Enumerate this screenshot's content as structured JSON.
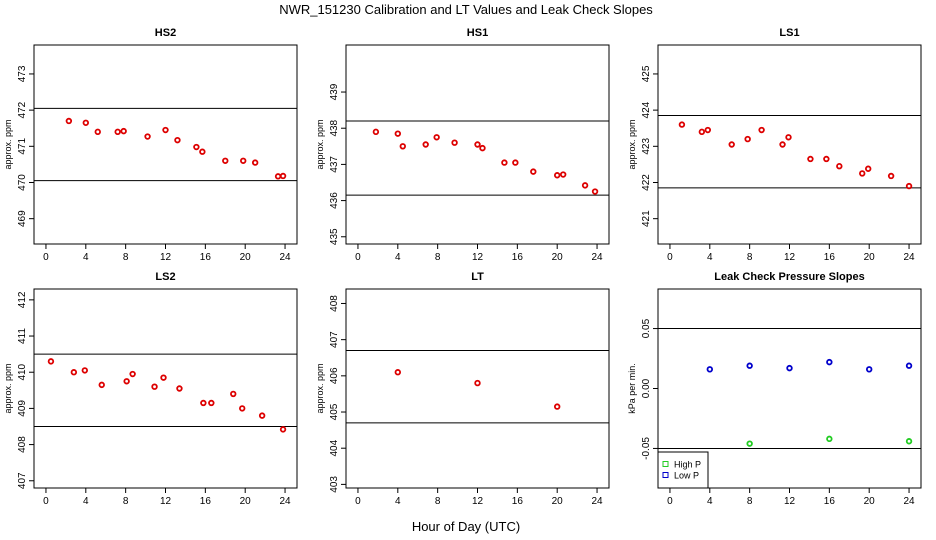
{
  "figure": {
    "title": "NWR_151230  Calibration and LT Values and Leak Check Slopes",
    "xlabel": "Hour of Day (UTC)"
  },
  "chart_data": [
    {
      "type": "scatter",
      "title": "HS2",
      "ylabel": "approx. ppm",
      "xlim": [
        -1.2,
        25.2
      ],
      "ylim": [
        468.3,
        473.8
      ],
      "xticks": [
        0,
        4,
        8,
        12,
        16,
        20,
        24
      ],
      "yticks": [
        469,
        470,
        471,
        472,
        473
      ],
      "hlines": [
        472.05,
        470.05
      ],
      "series": [
        {
          "color": "#dd0000",
          "shape": "circle",
          "x": [
            2.3,
            4.0,
            5.2,
            7.2,
            7.8,
            10.2,
            12.0,
            13.2,
            15.1,
            15.7,
            18.0,
            19.8,
            21.0,
            23.3,
            23.8
          ],
          "y": [
            471.7,
            471.65,
            471.4,
            471.4,
            471.42,
            471.27,
            471.45,
            471.17,
            470.98,
            470.85,
            470.6,
            470.6,
            470.55,
            470.17,
            470.18
          ]
        }
      ]
    },
    {
      "type": "scatter",
      "title": "HS1",
      "ylabel": "approx. ppm",
      "xlim": [
        -1.2,
        25.2
      ],
      "ylim": [
        434.8,
        440.3
      ],
      "xticks": [
        0,
        4,
        8,
        12,
        16,
        20,
        24
      ],
      "yticks": [
        435,
        436,
        437,
        438,
        439
      ],
      "hlines": [
        438.2,
        436.15
      ],
      "series": [
        {
          "color": "#dd0000",
          "shape": "circle",
          "x": [
            1.8,
            4.0,
            4.5,
            6.8,
            7.9,
            9.7,
            12.0,
            12.5,
            14.7,
            15.8,
            17.6,
            20.0,
            20.6,
            22.8,
            23.8
          ],
          "y": [
            437.9,
            437.85,
            437.5,
            437.55,
            437.75,
            437.6,
            437.55,
            437.45,
            437.05,
            437.05,
            436.8,
            436.7,
            436.72,
            436.42,
            436.25
          ]
        }
      ]
    },
    {
      "type": "scatter",
      "title": "LS1",
      "ylabel": "approx. ppm",
      "xlim": [
        -1.2,
        25.2
      ],
      "ylim": [
        420.3,
        425.8
      ],
      "xticks": [
        0,
        4,
        8,
        12,
        16,
        20,
        24
      ],
      "yticks": [
        421,
        422,
        423,
        424,
        425
      ],
      "hlines": [
        423.85,
        421.85
      ],
      "series": [
        {
          "color": "#dd0000",
          "shape": "circle",
          "x": [
            1.2,
            3.2,
            3.8,
            6.2,
            7.8,
            9.2,
            11.3,
            11.9,
            14.1,
            15.7,
            17.0,
            19.3,
            19.9,
            22.2,
            24.0
          ],
          "y": [
            423.6,
            423.4,
            423.45,
            423.05,
            423.2,
            423.45,
            423.05,
            423.25,
            422.65,
            422.65,
            422.45,
            422.25,
            422.38,
            422.18,
            421.9
          ]
        }
      ]
    },
    {
      "type": "scatter",
      "title": "LS2",
      "ylabel": "approx. ppm",
      "xlim": [
        -1.2,
        25.2
      ],
      "ylim": [
        406.8,
        412.3
      ],
      "xticks": [
        0,
        4,
        8,
        12,
        16,
        20,
        24
      ],
      "yticks": [
        407,
        408,
        409,
        410,
        411,
        412
      ],
      "hlines": [
        410.5,
        408.5
      ],
      "series": [
        {
          "color": "#dd0000",
          "shape": "circle",
          "x": [
            0.5,
            2.8,
            3.9,
            5.6,
            8.1,
            8.7,
            10.9,
            11.8,
            13.4,
            15.8,
            16.6,
            18.8,
            19.7,
            21.7,
            23.8
          ],
          "y": [
            410.3,
            410.0,
            410.05,
            409.65,
            409.75,
            409.95,
            409.6,
            409.85,
            409.55,
            409.15,
            409.15,
            409.4,
            409.0,
            408.8,
            408.42
          ]
        }
      ]
    },
    {
      "type": "scatter",
      "title": "LT",
      "ylabel": "approx. ppm",
      "xlim": [
        -1.2,
        25.2
      ],
      "ylim": [
        402.9,
        408.4
      ],
      "xticks": [
        0,
        4,
        8,
        12,
        16,
        20,
        24
      ],
      "yticks": [
        403,
        404,
        405,
        406,
        407,
        408
      ],
      "hlines": [
        406.7,
        404.7
      ],
      "series": [
        {
          "color": "#dd0000",
          "shape": "circle",
          "x": [
            4.0,
            12.0,
            20.0
          ],
          "y": [
            406.1,
            405.8,
            405.15
          ]
        }
      ]
    },
    {
      "type": "scatter",
      "title": "Leak Check Pressure Slopes",
      "ylabel": "kPa per min.",
      "xlim": [
        -1.2,
        25.2
      ],
      "ylim": [
        -0.083,
        0.083
      ],
      "xticks": [
        0,
        4,
        8,
        12,
        16,
        20,
        24
      ],
      "yticks": [
        -0.05,
        0.0,
        0.05
      ],
      "ytick_labels": [
        "-0.05",
        "0.00",
        "0.05"
      ],
      "hlines": [
        0.05,
        -0.05
      ],
      "legend_position": "bottom-left",
      "series": [
        {
          "name": "High P",
          "color": "#22cc22",
          "shape": "circle",
          "x": [
            8.0,
            16.0,
            24.0
          ],
          "y": [
            -0.046,
            -0.042,
            -0.044
          ]
        },
        {
          "name": "Low P",
          "color": "#0000cc",
          "shape": "circle",
          "x": [
            4.0,
            8.0,
            12.0,
            16.0,
            20.0,
            24.0
          ],
          "y": [
            0.016,
            0.019,
            0.017,
            0.022,
            0.016,
            0.019
          ]
        }
      ]
    }
  ]
}
